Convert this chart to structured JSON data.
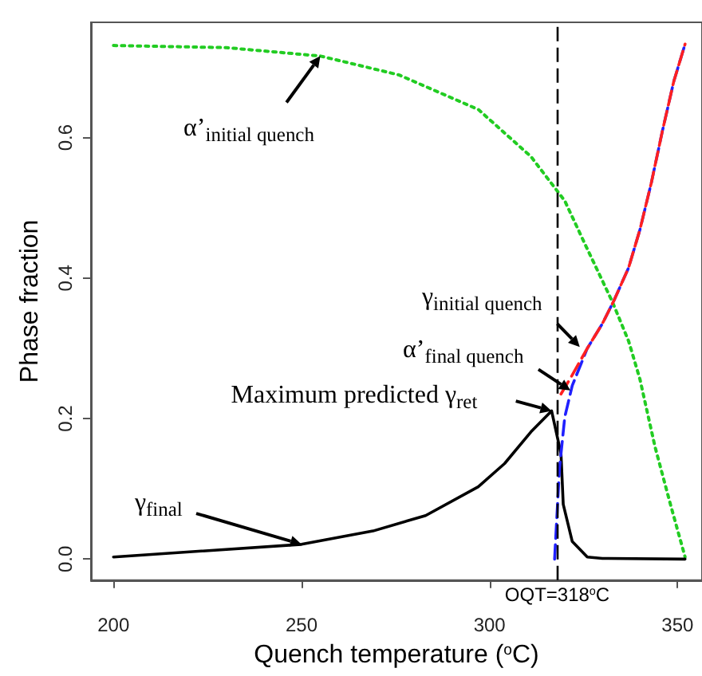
{
  "chart_data": {
    "type": "line",
    "xlabel": "Quench temperature ($^{o}$C)",
    "ylabel": "Phase fraction",
    "xlim": [
      194,
      356.5
    ],
    "ylim": [
      -0.03,
      0.764
    ],
    "xticks": [
      200,
      250,
      300,
      350
    ],
    "yticks": [
      {
        "value": 0,
        "label": "0.0"
      },
      {
        "value": 0.2,
        "label": "0.2"
      },
      {
        "value": 0.4,
        "label": "0.4"
      },
      {
        "value": 0.6,
        "label": "0.6"
      }
    ],
    "grid": false,
    "marker": "none",
    "series": [
      {
        "color": "#22cc22",
        "line_style": "dotted",
        "x": [
          200,
          230,
          255,
          276,
          297,
          311,
          320,
          325.5,
          332.6,
          337,
          340,
          344,
          348,
          352
        ],
        "values": [
          0.731,
          0.728,
          0.716,
          0.689,
          0.64,
          0.573,
          0.51,
          0.447,
          0.367,
          0.31,
          0.256,
          0.16,
          0.08,
          0.003
        ]
      },
      {
        "color": "#000000",
        "line_style": "solid",
        "x": [
          200,
          250,
          269,
          283,
          297,
          304,
          311,
          316.5,
          319,
          319.6,
          322,
          326,
          330,
          352
        ],
        "values": [
          0.003,
          0.021,
          0.04,
          0.062,
          0.103,
          0.136,
          0.181,
          0.211,
          0.15,
          0.078,
          0.025,
          0.003,
          0.001,
          0
        ]
      },
      {
        "color": "#2020ff",
        "line_style": "dashed",
        "x": [
          317.3,
          318.6,
          320,
          322,
          326,
          330,
          333,
          337,
          340,
          343,
          346,
          349,
          352
        ],
        "values": [
          0,
          0.129,
          0.202,
          0.247,
          0.3,
          0.335,
          0.367,
          0.415,
          0.469,
          0.535,
          0.61,
          0.68,
          0.733
        ]
      },
      {
        "color": "#ff2020",
        "line_style": "dashed",
        "x": [
          319,
          322,
          326,
          330,
          333,
          337,
          340,
          343,
          346,
          349,
          352
        ],
        "values": [
          0.235,
          0.262,
          0.3,
          0.335,
          0.367,
          0.415,
          0.469,
          0.535,
          0.61,
          0.68,
          0.733
        ]
      }
    ],
    "ref_lines": [
      {
        "axis": "x",
        "value": 318,
        "label": "OQT=318$^{o}$C",
        "color": "#000000",
        "line_style": "dashed"
      }
    ],
    "annotations": [
      {
        "text": "α’$_{initial quench}$",
        "x": 255,
        "y": 0.716
      },
      {
        "text": "γ$_{initial quench}$",
        "x": 324,
        "y": 0.302
      },
      {
        "text": "α’$_{final quench}$",
        "x": 321.5,
        "y": 0.24
      },
      {
        "text": "Maximum predicted γ$_{ret}$",
        "x": 316.5,
        "y": 0.211
      },
      {
        "text": "γ$_{final}$",
        "x": 250,
        "y": 0.021
      }
    ]
  }
}
